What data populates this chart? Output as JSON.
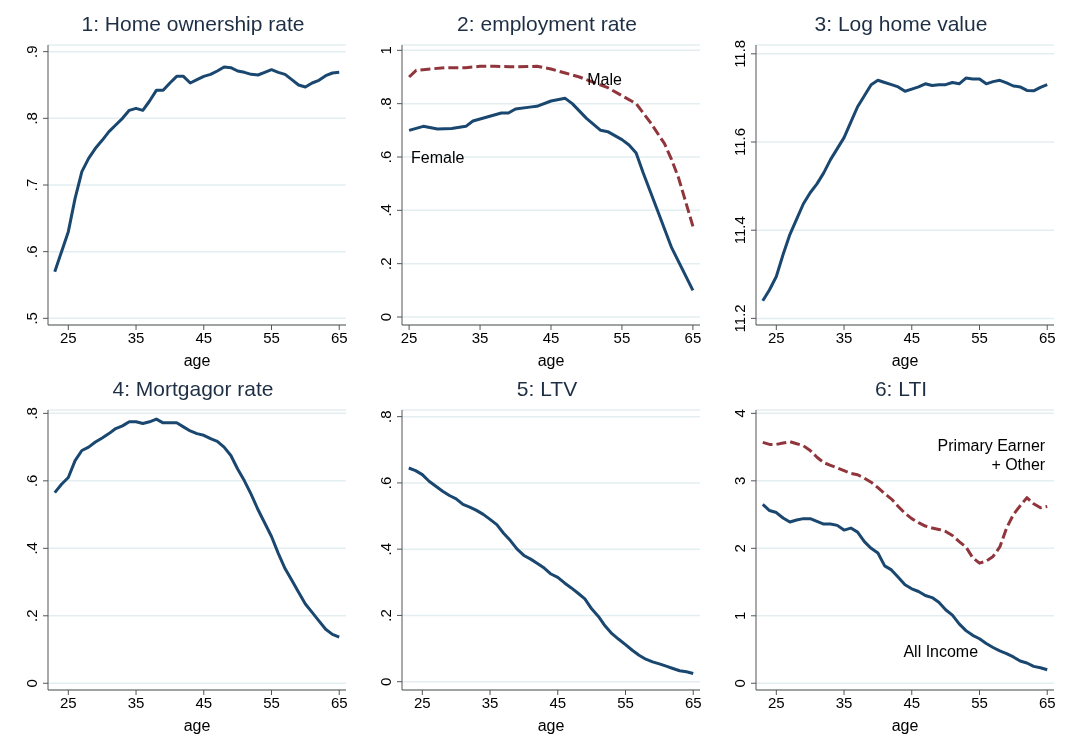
{
  "chart_data": [
    {
      "type": "line",
      "title": "1: Home ownership rate",
      "xlabel": "age",
      "grid": "y",
      "xlim": [
        22,
        66
      ],
      "xticks": [
        25,
        35,
        45,
        55,
        65
      ],
      "ylim": [
        0.49,
        0.91
      ],
      "yticks": [
        {
          "value": 0.5,
          "label": ".5"
        },
        {
          "value": 0.6,
          "label": ".6"
        },
        {
          "value": 0.7,
          "label": ".7"
        },
        {
          "value": 0.8,
          "label": ".8"
        },
        {
          "value": 0.9,
          "label": ".9"
        }
      ],
      "x": [
        23,
        24,
        25,
        26,
        27,
        28,
        29,
        30,
        31,
        32,
        33,
        34,
        35,
        36,
        37,
        38,
        39,
        40,
        41,
        42,
        43,
        44,
        45,
        46,
        47,
        48,
        49,
        50,
        51,
        52,
        53,
        54,
        55,
        56,
        57,
        58,
        59,
        60,
        61,
        62,
        63,
        64,
        65
      ],
      "series": [
        {
          "color": "#1a476f",
          "line_style": "solid",
          "values": [
            0.57,
            0.6,
            0.63,
            0.68,
            0.72,
            0.74,
            0.755,
            0.767,
            0.78,
            0.79,
            0.8,
            0.812,
            0.815,
            0.812,
            0.826,
            0.842,
            0.842,
            0.853,
            0.863,
            0.863,
            0.853,
            0.858,
            0.863,
            0.866,
            0.871,
            0.877,
            0.876,
            0.871,
            0.869,
            0.866,
            0.865,
            0.869,
            0.873,
            0.869,
            0.866,
            0.858,
            0.85,
            0.847,
            0.853,
            0.857,
            0.864,
            0.868,
            0.869
          ]
        }
      ]
    },
    {
      "type": "line",
      "title": "2: employment rate",
      "xlabel": "age",
      "grid": "y",
      "xlim": [
        24,
        66
      ],
      "xticks": [
        25,
        35,
        45,
        55,
        65
      ],
      "ylim": [
        -0.03,
        1.02
      ],
      "yticks": [
        0,
        {
          "value": 0.2,
          "label": ".2"
        },
        {
          "value": 0.4,
          "label": ".4"
        },
        {
          "value": 0.6,
          "label": ".6"
        },
        {
          "value": 0.8,
          "label": ".8"
        },
        1
      ],
      "series": [
        {
          "name": "Female",
          "color": "#1a476f",
          "line_style": "solid",
          "x": [
            25,
            27,
            29,
            31,
            33,
            34,
            36,
            38,
            39,
            40,
            42,
            43,
            45,
            47,
            48,
            50,
            52,
            53,
            55,
            56,
            57,
            58,
            60,
            62,
            65
          ],
          "values": [
            0.7,
            0.715,
            0.705,
            0.707,
            0.715,
            0.735,
            0.75,
            0.765,
            0.765,
            0.78,
            0.787,
            0.79,
            0.81,
            0.82,
            0.8,
            0.745,
            0.7,
            0.695,
            0.665,
            0.645,
            0.615,
            0.54,
            0.4,
            0.26,
            0.1
          ]
        },
        {
          "name": "Male",
          "color": "#90353b",
          "line_style": "dashed",
          "x": [
            25,
            26,
            28,
            30,
            33,
            35,
            37,
            40,
            43,
            45,
            47,
            49,
            51,
            53,
            55,
            57,
            59,
            61,
            62,
            63,
            64,
            65
          ],
          "values": [
            0.9,
            0.925,
            0.93,
            0.935,
            0.935,
            0.94,
            0.94,
            0.938,
            0.94,
            0.93,
            0.915,
            0.9,
            0.88,
            0.86,
            0.83,
            0.8,
            0.73,
            0.65,
            0.59,
            0.52,
            0.43,
            0.34
          ]
        }
      ]
    },
    {
      "type": "line",
      "title": "3: Log home value",
      "xlabel": "age",
      "grid": "y",
      "xlim": [
        22,
        66
      ],
      "xticks": [
        25,
        35,
        45,
        55,
        65
      ],
      "ylim": [
        11.185,
        11.82
      ],
      "yticks": [
        11.2,
        11.4,
        11.6,
        11.8
      ],
      "x": [
        23,
        24,
        25,
        26,
        27,
        28,
        29,
        30,
        31,
        32,
        33,
        34,
        35,
        36,
        37,
        38,
        39,
        40,
        41,
        42,
        43,
        44,
        45,
        46,
        47,
        48,
        49,
        50,
        51,
        52,
        53,
        54,
        55,
        56,
        57,
        58,
        59,
        60,
        61,
        62,
        63,
        64,
        65
      ],
      "series": [
        {
          "color": "#1a476f",
          "line_style": "solid",
          "values": [
            11.24,
            11.265,
            11.295,
            11.345,
            11.39,
            11.425,
            11.46,
            11.485,
            11.505,
            11.53,
            11.56,
            11.585,
            11.61,
            11.645,
            11.68,
            11.705,
            11.73,
            11.74,
            11.735,
            11.73,
            11.725,
            11.715,
            11.72,
            11.725,
            11.732,
            11.728,
            11.73,
            11.73,
            11.735,
            11.732,
            11.745,
            11.743,
            11.743,
            11.732,
            11.737,
            11.74,
            11.734,
            11.727,
            11.725,
            11.717,
            11.716,
            11.724,
            11.73
          ]
        }
      ]
    },
    {
      "type": "line",
      "title": "4: Mortgagor rate",
      "xlabel": "age",
      "grid": "y",
      "xlim": [
        22,
        66
      ],
      "xticks": [
        25,
        35,
        45,
        55,
        65
      ],
      "ylim": [
        -0.02,
        0.81
      ],
      "yticks": [
        0,
        {
          "value": 0.2,
          "label": ".2"
        },
        {
          "value": 0.4,
          "label": ".4"
        },
        {
          "value": 0.6,
          "label": ".6"
        },
        {
          "value": 0.8,
          "label": ".8"
        }
      ],
      "x": [
        23,
        24,
        25,
        26,
        27,
        28,
        29,
        30,
        31,
        32,
        33,
        34,
        35,
        36,
        37,
        38,
        39,
        40,
        41,
        42,
        43,
        44,
        45,
        46,
        47,
        48,
        49,
        50,
        51,
        52,
        53,
        54,
        55,
        56,
        57,
        58,
        59,
        60,
        61,
        62,
        63,
        64,
        65
      ],
      "series": [
        {
          "color": "#1a476f",
          "line_style": "solid",
          "values": [
            0.565,
            0.59,
            0.61,
            0.66,
            0.69,
            0.7,
            0.715,
            0.727,
            0.74,
            0.755,
            0.763,
            0.775,
            0.775,
            0.77,
            0.775,
            0.783,
            0.772,
            0.772,
            0.772,
            0.76,
            0.748,
            0.74,
            0.735,
            0.725,
            0.717,
            0.7,
            0.675,
            0.635,
            0.6,
            0.56,
            0.515,
            0.475,
            0.435,
            0.385,
            0.34,
            0.305,
            0.27,
            0.235,
            0.21,
            0.185,
            0.16,
            0.145,
            0.137
          ]
        }
      ]
    },
    {
      "type": "line",
      "title": "5: LTV",
      "xlabel": "age",
      "grid": "y",
      "xlim": [
        22,
        66
      ],
      "xticks": [
        25,
        35,
        45,
        55,
        65
      ],
      "ylim": [
        -0.025,
        0.82
      ],
      "yticks": [
        0,
        {
          "value": 0.2,
          "label": ".2"
        },
        {
          "value": 0.4,
          "label": ".4"
        },
        {
          "value": 0.6,
          "label": ".6"
        },
        {
          "value": 0.8,
          "label": ".8"
        }
      ],
      "x": [
        23,
        24,
        25,
        26,
        27,
        28,
        29,
        30,
        31,
        32,
        33,
        34,
        35,
        36,
        37,
        38,
        39,
        40,
        41,
        42,
        43,
        44,
        45,
        46,
        47,
        48,
        49,
        50,
        51,
        52,
        53,
        54,
        55,
        56,
        57,
        58,
        59,
        60,
        61,
        62,
        63,
        64,
        65
      ],
      "series": [
        {
          "color": "#1a476f",
          "line_style": "solid",
          "values": [
            0.645,
            0.637,
            0.625,
            0.605,
            0.59,
            0.575,
            0.562,
            0.552,
            0.535,
            0.527,
            0.517,
            0.505,
            0.49,
            0.474,
            0.448,
            0.426,
            0.4,
            0.381,
            0.37,
            0.357,
            0.343,
            0.325,
            0.315,
            0.298,
            0.283,
            0.267,
            0.25,
            0.22,
            0.197,
            0.168,
            0.145,
            0.128,
            0.112,
            0.095,
            0.08,
            0.068,
            0.06,
            0.054,
            0.047,
            0.04,
            0.033,
            0.03,
            0.025
          ]
        }
      ]
    },
    {
      "type": "line",
      "title": "6: LTI",
      "xlabel": "age",
      "grid": "y",
      "xlim": [
        22,
        66
      ],
      "xticks": [
        25,
        35,
        45,
        55,
        65
      ],
      "ylim": [
        -0.1,
        4.05
      ],
      "yticks": [
        0,
        1,
        2,
        3,
        4
      ],
      "x": [
        23,
        24,
        25,
        26,
        27,
        28,
        29,
        30,
        31,
        32,
        33,
        34,
        35,
        36,
        37,
        38,
        39,
        40,
        41,
        42,
        43,
        44,
        45,
        46,
        47,
        48,
        49,
        50,
        51,
        52,
        53,
        54,
        55,
        56,
        57,
        58,
        59,
        60,
        61,
        62,
        63,
        64,
        65
      ],
      "series": [
        {
          "name": "All Income",
          "color": "#1a476f",
          "line_style": "solid",
          "values": [
            2.65,
            2.56,
            2.53,
            2.45,
            2.39,
            2.42,
            2.44,
            2.44,
            2.4,
            2.36,
            2.36,
            2.34,
            2.27,
            2.3,
            2.24,
            2.1,
            2.0,
            1.93,
            1.74,
            1.68,
            1.57,
            1.46,
            1.4,
            1.36,
            1.3,
            1.27,
            1.2,
            1.09,
            1.01,
            0.88,
            0.78,
            0.71,
            0.66,
            0.59,
            0.53,
            0.48,
            0.44,
            0.39,
            0.33,
            0.3,
            0.25,
            0.23,
            0.2
          ]
        },
        {
          "name": "Primary Earner + Other",
          "color": "#90353b",
          "line_style": "dashed",
          "values": [
            3.57,
            3.54,
            3.54,
            3.56,
            3.58,
            3.55,
            3.52,
            3.45,
            3.35,
            3.27,
            3.23,
            3.19,
            3.15,
            3.11,
            3.09,
            3.04,
            2.98,
            2.9,
            2.81,
            2.73,
            2.62,
            2.52,
            2.44,
            2.38,
            2.33,
            2.3,
            2.28,
            2.25,
            2.19,
            2.1,
            2.02,
            1.86,
            1.78,
            1.81,
            1.88,
            2.02,
            2.3,
            2.5,
            2.63,
            2.75,
            2.66,
            2.6,
            2.62
          ]
        }
      ]
    }
  ]
}
